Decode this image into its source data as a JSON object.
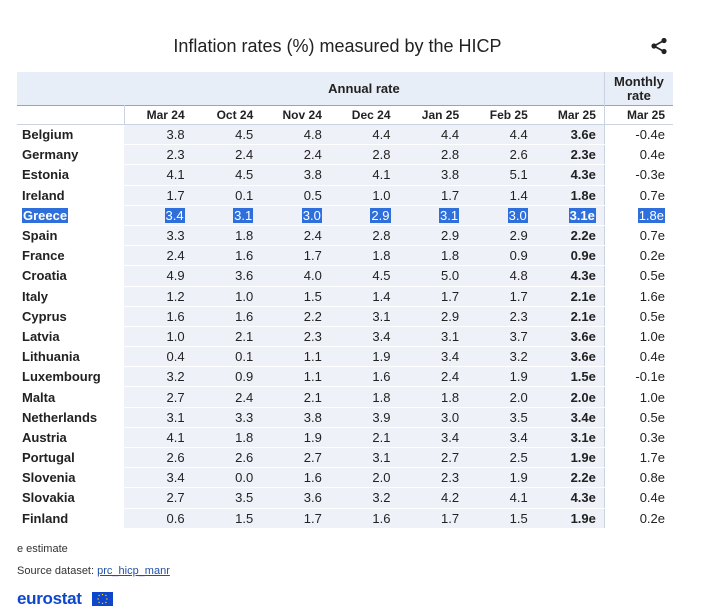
{
  "title": "Inflation rates (%) measured by the HICP",
  "header": {
    "annual_label": "Annual rate",
    "monthly_label_line1": "Monthly",
    "monthly_label_line2": "rate"
  },
  "columns": [
    "Mar 24",
    "Oct 24",
    "Nov 24",
    "Dec 24",
    "Jan 25",
    "Feb 25",
    "Mar 25",
    "Mar 25"
  ],
  "rows": [
    {
      "country": "Belgium",
      "v": [
        "3.8",
        "4.5",
        "4.8",
        "4.4",
        "4.4",
        "4.4",
        "3.6e",
        "-0.4e"
      ]
    },
    {
      "country": "Germany",
      "v": [
        "2.3",
        "2.4",
        "2.4",
        "2.8",
        "2.8",
        "2.6",
        "2.3e",
        "0.4e"
      ]
    },
    {
      "country": "Estonia",
      "v": [
        "4.1",
        "4.5",
        "3.8",
        "4.1",
        "3.8",
        "5.1",
        "4.3e",
        "-0.3e"
      ]
    },
    {
      "country": "Ireland",
      "v": [
        "1.7",
        "0.1",
        "0.5",
        "1.0",
        "1.7",
        "1.4",
        "1.8e",
        "0.7e"
      ]
    },
    {
      "country": "Greece",
      "v": [
        "3.4",
        "3.1",
        "3.0",
        "2.9",
        "3.1",
        "3.0",
        "3.1e",
        "1.8e"
      ]
    },
    {
      "country": "Spain",
      "v": [
        "3.3",
        "1.8",
        "2.4",
        "2.8",
        "2.9",
        "2.9",
        "2.2e",
        "0.7e"
      ]
    },
    {
      "country": "France",
      "v": [
        "2.4",
        "1.6",
        "1.7",
        "1.8",
        "1.8",
        "0.9",
        "0.9e",
        "0.2e"
      ]
    },
    {
      "country": "Croatia",
      "v": [
        "4.9",
        "3.6",
        "4.0",
        "4.5",
        "5.0",
        "4.8",
        "4.3e",
        "0.5e"
      ]
    },
    {
      "country": "Italy",
      "v": [
        "1.2",
        "1.0",
        "1.5",
        "1.4",
        "1.7",
        "1.7",
        "2.1e",
        "1.6e"
      ]
    },
    {
      "country": "Cyprus",
      "v": [
        "1.6",
        "1.6",
        "2.2",
        "3.1",
        "2.9",
        "2.3",
        "2.1e",
        "0.5e"
      ]
    },
    {
      "country": "Latvia",
      "v": [
        "1.0",
        "2.1",
        "2.3",
        "3.4",
        "3.1",
        "3.7",
        "3.6e",
        "1.0e"
      ]
    },
    {
      "country": "Lithuania",
      "v": [
        "0.4",
        "0.1",
        "1.1",
        "1.9",
        "3.4",
        "3.2",
        "3.6e",
        "0.4e"
      ]
    },
    {
      "country": "Luxembourg",
      "v": [
        "3.2",
        "0.9",
        "1.1",
        "1.6",
        "2.4",
        "1.9",
        "1.5e",
        "-0.1e"
      ]
    },
    {
      "country": "Malta",
      "v": [
        "2.7",
        "2.4",
        "2.1",
        "1.8",
        "1.8",
        "2.0",
        "2.0e",
        "1.0e"
      ]
    },
    {
      "country": "Netherlands",
      "v": [
        "3.1",
        "3.3",
        "3.8",
        "3.9",
        "3.0",
        "3.5",
        "3.4e",
        "0.5e"
      ]
    },
    {
      "country": "Austria",
      "v": [
        "4.1",
        "1.8",
        "1.9",
        "2.1",
        "3.4",
        "3.4",
        "3.1e",
        "0.3e"
      ]
    },
    {
      "country": "Portugal",
      "v": [
        "2.6",
        "2.6",
        "2.7",
        "3.1",
        "2.7",
        "2.5",
        "1.9e",
        "1.7e"
      ]
    },
    {
      "country": "Slovenia",
      "v": [
        "3.4",
        "0.0",
        "1.6",
        "2.0",
        "2.3",
        "1.9",
        "2.2e",
        "0.8e"
      ]
    },
    {
      "country": "Slovakia",
      "v": [
        "2.7",
        "3.5",
        "3.6",
        "3.2",
        "4.2",
        "4.1",
        "4.3e",
        "0.4e"
      ]
    },
    {
      "country": "Finland",
      "v": [
        "0.6",
        "1.5",
        "1.7",
        "1.6",
        "1.7",
        "1.5",
        "1.9e",
        "0.2e"
      ]
    }
  ],
  "highlighted_row": "Greece",
  "footer": {
    "note": "e estimate",
    "source_label": "Source dataset: ",
    "source_link": "prc_hicp_manr",
    "logo": "eurostat"
  },
  "colors": {
    "accent": "#0e47cb",
    "highlight": "#2f6fdc",
    "cell_bg": "#eef2f8"
  }
}
